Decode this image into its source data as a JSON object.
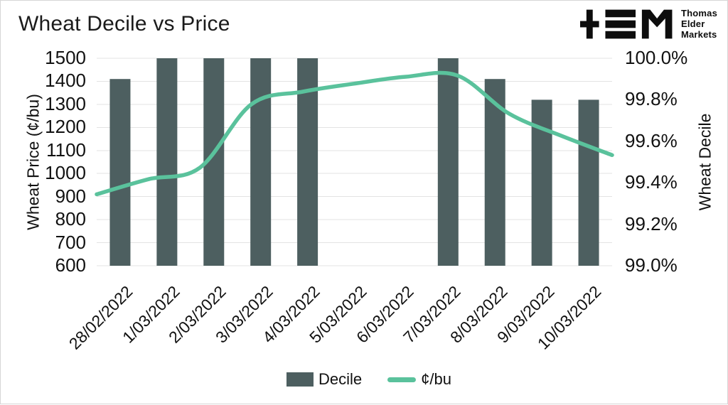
{
  "logo": {
    "name": "Thomas Elder Markets",
    "lines": [
      "Thomas",
      "Elder",
      "Markets"
    ]
  },
  "chart_data": {
    "type": "combo",
    "title": "Wheat Decile vs Price",
    "categories": [
      "28/02/2022",
      "1/03/2022",
      "2/03/2022",
      "3/03/2022",
      "4/03/2022",
      "5/03/2022",
      "6/03/2022",
      "7/03/2022",
      "8/03/2022",
      "9/03/2022",
      "10/03/2022"
    ],
    "series": [
      {
        "name": "Decile",
        "type": "bar",
        "axis": "right",
        "unit": "%",
        "color": "#4d5f60",
        "values": [
          99.9,
          100.0,
          100.0,
          100.0,
          100.0,
          null,
          null,
          100.0,
          99.9,
          99.8,
          99.8
        ]
      },
      {
        "name": "¢/bu",
        "type": "line",
        "axis": "left",
        "unit": "¢/bu",
        "color": "#5ac29c",
        "values": [
          910,
          975,
          1025,
          1300,
          1355,
          1390,
          1420,
          1425,
          1260,
          1165,
          1080
        ]
      }
    ],
    "axes": {
      "left": {
        "label": "Wheat Price (¢/bu)",
        "min": 600,
        "max": 1500,
        "ticks": [
          "1500",
          "1400",
          "1300",
          "1200",
          "1100",
          "1000",
          "900",
          "800",
          "700",
          "600"
        ]
      },
      "right": {
        "label": "Wheat Decile",
        "min": 99.0,
        "max": 100.0,
        "ticks": [
          "100.0%",
          "99.8%",
          "99.6%",
          "99.4%",
          "99.2%",
          "99.0%"
        ]
      }
    },
    "grid": true,
    "grid_color": "#e3e3e3",
    "legend_position": "bottom"
  }
}
